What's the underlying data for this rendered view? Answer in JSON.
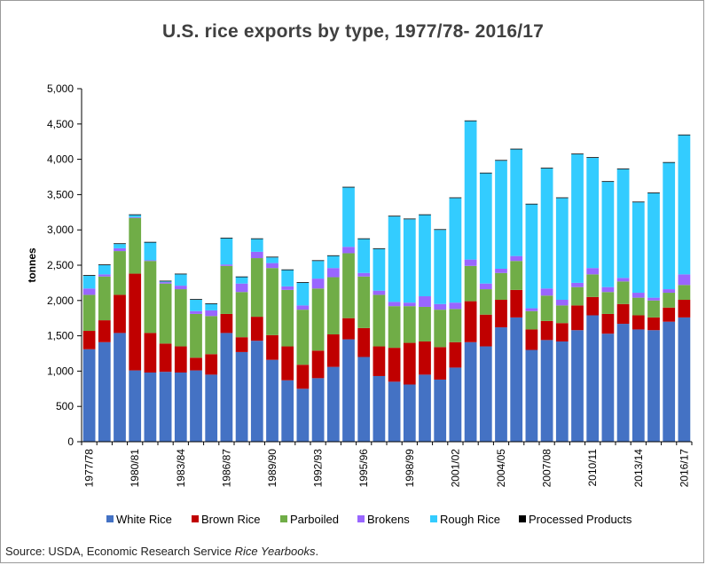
{
  "chart_data": {
    "type": "bar",
    "stacked": true,
    "title": "U.S. rice exports by type, 1977/78- 2016/17",
    "xlabel": "",
    "ylabel": "tonnes",
    "ylim": [
      0,
      5000
    ],
    "yticks": [
      0,
      500,
      1000,
      1500,
      2000,
      2500,
      3000,
      3500,
      4000,
      4500,
      5000
    ],
    "ytick_labels": [
      "0",
      "500",
      "1,000",
      "1,500",
      "2,000",
      "2,500",
      "3,000",
      "3,500",
      "4,000",
      "4,500",
      "5,000"
    ],
    "categories": [
      "1977/78",
      "1978/79",
      "1979/80",
      "1980/81",
      "1981/82",
      "1982/83",
      "1983/84",
      "1984/85",
      "1985/86",
      "1986/87",
      "1987/88",
      "1988/89",
      "1989/90",
      "1990/91",
      "1991/92",
      "1992/93",
      "1993/94",
      "1994/95",
      "1995/96",
      "1996/97",
      "1997/98",
      "1998/99",
      "1999/00",
      "2000/01",
      "2001/02",
      "2002/03",
      "2003/04",
      "2004/05",
      "2005/06",
      "2006/07",
      "2007/08",
      "2008/09",
      "2009/10",
      "2010/11",
      "2011/12",
      "2012/13",
      "2013/14",
      "2014/15",
      "2015/16",
      "2016/17"
    ],
    "xtick_labels": [
      "1977/78",
      "1980/81",
      "1983/84",
      "1986/87",
      "1989/90",
      "1992/93",
      "1995/96",
      "1998/99",
      "2001/02",
      "2004/05",
      "2007/08",
      "2010/11",
      "2013/14",
      "2016/17"
    ],
    "series": [
      {
        "name": "White Rice",
        "color": "#4472C4",
        "values": [
          1310,
          1410,
          1540,
          1010,
          980,
          990,
          980,
          1010,
          950,
          1540,
          1270,
          1430,
          1160,
          870,
          750,
          900,
          1060,
          1450,
          1200,
          930,
          850,
          810,
          950,
          880,
          1050,
          1410,
          1350,
          1620,
          1760,
          1300,
          1440,
          1420,
          1580,
          1790,
          1530,
          1670,
          1590,
          1580,
          1700,
          1760
        ]
      },
      {
        "name": "Brown Rice",
        "color": "#C00000",
        "values": [
          260,
          310,
          540,
          1370,
          560,
          400,
          370,
          180,
          290,
          270,
          210,
          340,
          350,
          480,
          340,
          390,
          460,
          300,
          410,
          420,
          480,
          590,
          470,
          460,
          360,
          580,
          450,
          390,
          390,
          290,
          270,
          260,
          350,
          260,
          280,
          280,
          200,
          180,
          200,
          250
        ]
      },
      {
        "name": "Parboiled",
        "color": "#70AD47",
        "values": [
          510,
          620,
          620,
          790,
          1020,
          850,
          810,
          620,
          540,
          680,
          640,
          830,
          950,
          800,
          780,
          880,
          810,
          920,
          730,
          730,
          590,
          520,
          490,
          530,
          470,
          500,
          360,
          380,
          410,
          260,
          360,
          250,
          260,
          320,
          310,
          320,
          250,
          240,
          210,
          210
        ]
      },
      {
        "name": "Brokens",
        "color": "#9966FF",
        "values": [
          90,
          30,
          40,
          10,
          10,
          20,
          50,
          40,
          80,
          20,
          120,
          90,
          70,
          50,
          60,
          140,
          130,
          90,
          50,
          60,
          60,
          50,
          150,
          80,
          90,
          90,
          80,
          60,
          70,
          40,
          100,
          80,
          60,
          90,
          70,
          50,
          70,
          40,
          50,
          150
        ]
      },
      {
        "name": "Rough Rice",
        "color": "#33CCFF",
        "values": [
          180,
          130,
          60,
          30,
          250,
          10,
          160,
          160,
          90,
          370,
          90,
          180,
          80,
          230,
          320,
          250,
          170,
          840,
          480,
          590,
          1210,
          1180,
          1150,
          1050,
          1480,
          1960,
          1560,
          1530,
          1510,
          1470,
          1700,
          1440,
          1820,
          1560,
          1490,
          1540,
          1280,
          1480,
          1790,
          1970
        ]
      },
      {
        "name": "Processed Products",
        "color": "#000000",
        "values": [
          10,
          10,
          10,
          10,
          10,
          10,
          10,
          10,
          10,
          10,
          10,
          10,
          10,
          10,
          10,
          10,
          10,
          10,
          10,
          10,
          10,
          10,
          10,
          10,
          10,
          10,
          10,
          10,
          10,
          10,
          10,
          10,
          10,
          10,
          10,
          10,
          10,
          10,
          10,
          10
        ]
      }
    ],
    "legend_position": "bottom",
    "grid": false
  },
  "source": {
    "prefix": "Source: USDA, Economic Research Service ",
    "publication": "Rice Yearbooks",
    "suffix": "."
  }
}
